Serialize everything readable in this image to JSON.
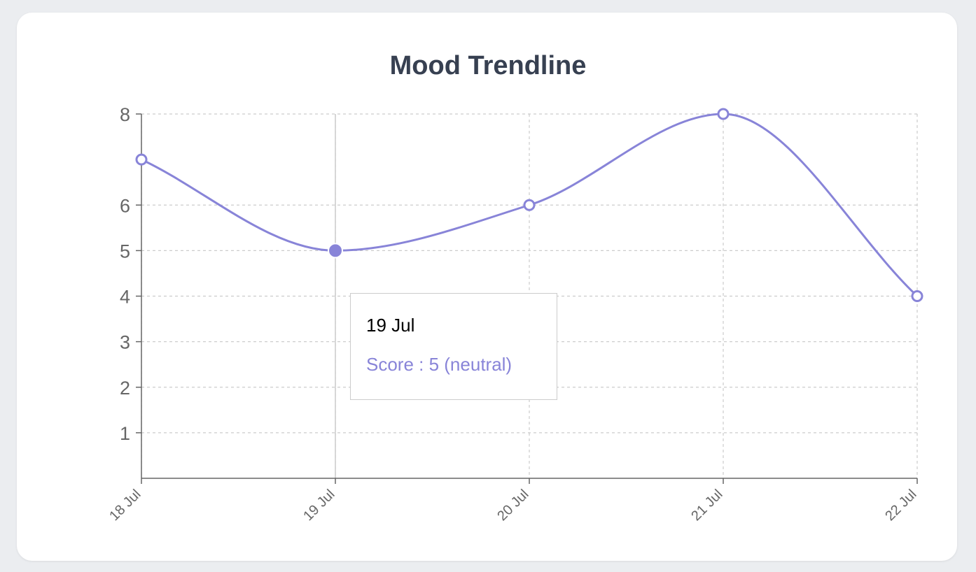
{
  "chart_data": {
    "type": "line",
    "title": "Mood Trendline",
    "categories": [
      "18 Jul",
      "19 Jul",
      "20 Jul",
      "21 Jul",
      "22 Jul"
    ],
    "series": [
      {
        "values": [
          7,
          5,
          6,
          8,
          4
        ],
        "color": "#8884d8"
      }
    ],
    "y_ticks": [
      1,
      2,
      3,
      4,
      5,
      6,
      8
    ],
    "ylim": [
      0,
      8
    ],
    "grid": true,
    "curve": "monotone",
    "active_index": 1
  },
  "tooltip": {
    "label": "19 Jul",
    "value_text": "Score : 5 (neutral)"
  },
  "colors": {
    "line": "#8884d8",
    "grid": "#cccccc",
    "axis": "#666666",
    "title": "#374051",
    "card": "#ffffff",
    "background": "#ebedf0"
  }
}
